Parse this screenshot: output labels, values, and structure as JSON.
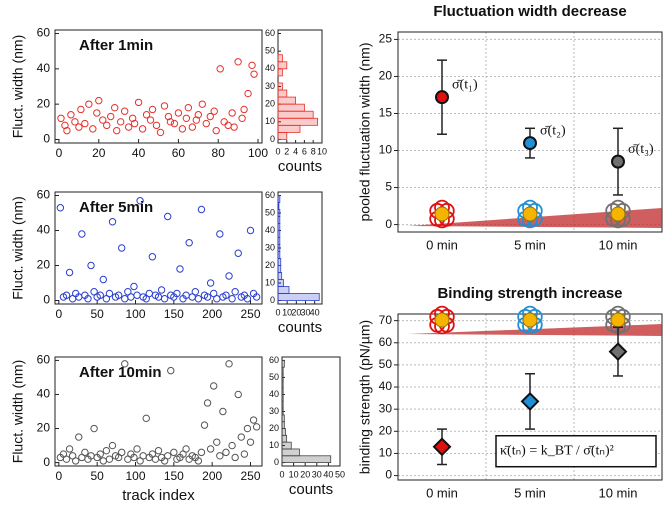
{
  "chart_data": [
    {
      "type": "scatter",
      "title": "After 1min",
      "y_label": "Fluct. width (nm)",
      "color": "#e8302a",
      "x": [
        1,
        3,
        4,
        6,
        8,
        10,
        11,
        13,
        15,
        17,
        19,
        20,
        22,
        24,
        26,
        28,
        29,
        31,
        33,
        35,
        37,
        38,
        40,
        42,
        44,
        46,
        47,
        49,
        51,
        53,
        55,
        56,
        58,
        60,
        62,
        64,
        65,
        67,
        69,
        70,
        72,
        74,
        76,
        78,
        79,
        81,
        83,
        85,
        87,
        88,
        90,
        92,
        93,
        95,
        97,
        98
      ],
      "values": [
        12,
        8,
        5,
        14,
        10,
        7,
        17,
        9,
        20,
        6,
        15,
        22,
        11,
        8,
        13,
        18,
        5,
        10,
        16,
        7,
        12,
        9,
        21,
        6,
        14,
        11,
        17,
        8,
        4,
        19,
        13,
        10,
        9,
        15,
        6,
        12,
        18,
        7,
        11,
        14,
        20,
        9,
        13,
        16,
        5,
        40,
        10,
        8,
        15,
        7,
        44,
        12,
        17,
        26,
        42,
        37
      ],
      "xlim": [
        -2,
        102
      ],
      "ylim": [
        -2,
        62
      ],
      "xticks": [
        0,
        20,
        40,
        60,
        80,
        100
      ],
      "yticks": [
        0,
        20,
        40,
        60
      ]
    },
    {
      "type": "histogram",
      "x_label": "counts",
      "color": "#e8302a",
      "bins": [
        0,
        4,
        8,
        12,
        16,
        20,
        24,
        28,
        32,
        36,
        40,
        44,
        48,
        52,
        56,
        60
      ],
      "values": [
        2,
        5,
        9,
        8,
        6,
        4,
        2,
        1,
        0,
        1,
        2,
        1,
        0,
        0,
        0
      ],
      "xlim": [
        0,
        10
      ],
      "ylim": [
        -2,
        62
      ],
      "xticks": [
        0,
        2,
        4,
        6,
        8,
        10
      ],
      "yticks": [
        0,
        10,
        20,
        30,
        40,
        50,
        60
      ]
    },
    {
      "type": "scatter",
      "title": "After 5min",
      "y_label": "Fluct. width (nm)",
      "color": "#2b3fcf",
      "x": [
        2,
        6,
        10,
        14,
        18,
        22,
        26,
        30,
        34,
        38,
        42,
        46,
        50,
        54,
        58,
        62,
        66,
        70,
        74,
        78,
        82,
        86,
        90,
        94,
        98,
        102,
        106,
        110,
        114,
        118,
        122,
        126,
        130,
        134,
        138,
        142,
        146,
        150,
        154,
        158,
        162,
        166,
        170,
        174,
        178,
        182,
        186,
        190,
        194,
        198,
        202,
        206,
        210,
        214,
        218,
        222,
        226,
        230,
        234,
        238,
        242,
        246,
        250,
        254,
        258
      ],
      "values": [
        53,
        2,
        3,
        16,
        1,
        4,
        2,
        38,
        3,
        1,
        20,
        5,
        2,
        3,
        12,
        1,
        4,
        45,
        2,
        3,
        30,
        1,
        5,
        2,
        8,
        3,
        57,
        2,
        1,
        4,
        25,
        3,
        2,
        6,
        1,
        48,
        3,
        2,
        4,
        18,
        1,
        3,
        33,
        2,
        5,
        1,
        52,
        3,
        2,
        10,
        4,
        1,
        38,
        2,
        3,
        14,
        1,
        5,
        27,
        2,
        3,
        1,
        40,
        4,
        2
      ],
      "xlim": [
        -5,
        265
      ],
      "ylim": [
        -2,
        62
      ],
      "xticks": [
        0,
        50,
        100,
        150,
        200,
        250
      ],
      "yticks": [
        0,
        20,
        40,
        60
      ]
    },
    {
      "type": "histogram",
      "x_label": "counts",
      "color": "#2b3fcf",
      "bins": [
        0,
        4,
        8,
        12,
        16,
        20,
        24,
        28,
        32,
        36,
        40,
        44,
        48,
        52,
        56,
        60
      ],
      "values": [
        45,
        12,
        6,
        4,
        3,
        3,
        2,
        2,
        2,
        2,
        2,
        2,
        2,
        1,
        2
      ],
      "xlim": [
        0,
        48
      ],
      "ylim": [
        -2,
        62
      ],
      "xticks": [
        0,
        10,
        20,
        30,
        40
      ],
      "yticks": [
        0,
        10,
        20,
        30,
        40,
        50,
        60
      ]
    },
    {
      "type": "scatter",
      "title": "After 10min",
      "y_label": "Fluct. width (nm)",
      "x_label": "track index",
      "color": "#555555",
      "x": [
        2,
        6,
        10,
        14,
        18,
        22,
        26,
        30,
        34,
        38,
        42,
        46,
        50,
        54,
        58,
        62,
        66,
        70,
        74,
        78,
        82,
        86,
        90,
        94,
        98,
        102,
        106,
        110,
        114,
        118,
        122,
        126,
        130,
        134,
        138,
        142,
        146,
        150,
        154,
        158,
        162,
        166,
        170,
        174,
        178,
        182,
        186,
        190,
        194,
        198,
        202,
        206,
        210,
        214,
        218,
        222,
        226,
        230,
        234,
        238,
        242,
        246,
        250,
        254,
        258
      ],
      "values": [
        3,
        5,
        2,
        8,
        4,
        1,
        15,
        3,
        6,
        2,
        4,
        20,
        3,
        5,
        1,
        7,
        2,
        10,
        4,
        3,
        6,
        58,
        2,
        5,
        3,
        8,
        1,
        4,
        26,
        3,
        5,
        2,
        7,
        3,
        1,
        4,
        54,
        6,
        2,
        3,
        5,
        8,
        2,
        4,
        3,
        1,
        6,
        22,
        35,
        8,
        45,
        12,
        4,
        30,
        6,
        58,
        10,
        3,
        40,
        15,
        5,
        20,
        12,
        25,
        21
      ],
      "xlim": [
        -5,
        265
      ],
      "ylim": [
        -2,
        62
      ],
      "xticks": [
        0,
        50,
        100,
        150,
        200,
        250
      ],
      "yticks": [
        0,
        20,
        40,
        60
      ]
    },
    {
      "type": "histogram",
      "x_label": "counts",
      "color": "#444444",
      "bins": [
        0,
        4,
        8,
        12,
        16,
        20,
        24,
        28,
        32,
        36,
        40,
        44,
        48,
        52,
        56,
        60
      ],
      "values": [
        42,
        15,
        8,
        4,
        3,
        2,
        2,
        1,
        1,
        1,
        1,
        1,
        1,
        1,
        2
      ],
      "xlim": [
        0,
        50
      ],
      "ylim": [
        -2,
        62
      ],
      "xticks": [
        0,
        10,
        20,
        30,
        40,
        50
      ],
      "yticks": [
        0,
        10,
        20,
        30,
        40,
        50,
        60
      ]
    },
    {
      "type": "errorbar",
      "title": "Fluctuation width decrease",
      "y_label": "pooled fluctuation width (nm)",
      "marker": "circle",
      "grid": true,
      "categories": [
        "0 min",
        "5 min",
        "10 min"
      ],
      "values": [
        17.2,
        11,
        8.5
      ],
      "errors": [
        5,
        2,
        4.5
      ],
      "colors": [
        "#e01010",
        "#1f8fd6",
        "#707070"
      ],
      "annotations": [
        "σ̄(t₁)",
        "σ̄(t₂)",
        "σ̄(t₃)"
      ],
      "ylim": [
        -1,
        26
      ],
      "yticks": [
        0,
        5,
        10,
        15,
        20,
        25
      ]
    },
    {
      "type": "errorbar",
      "title": "Binding strength increase",
      "y_label": "binding strength (pN/µm)",
      "marker": "diamond",
      "grid": true,
      "categories": [
        "0 min",
        "5 min",
        "10 min"
      ],
      "values": [
        13,
        33.5,
        56
      ],
      "errors": [
        8,
        12.5,
        11
      ],
      "colors": [
        "#e01010",
        "#1f8fd6",
        "#707070"
      ],
      "formula": "κ̄(tₙ) = k_BT / σ̄(tₙ)²",
      "ylim": [
        -2,
        73
      ],
      "yticks": [
        0,
        10,
        20,
        30,
        40,
        50,
        60,
        70
      ]
    }
  ]
}
